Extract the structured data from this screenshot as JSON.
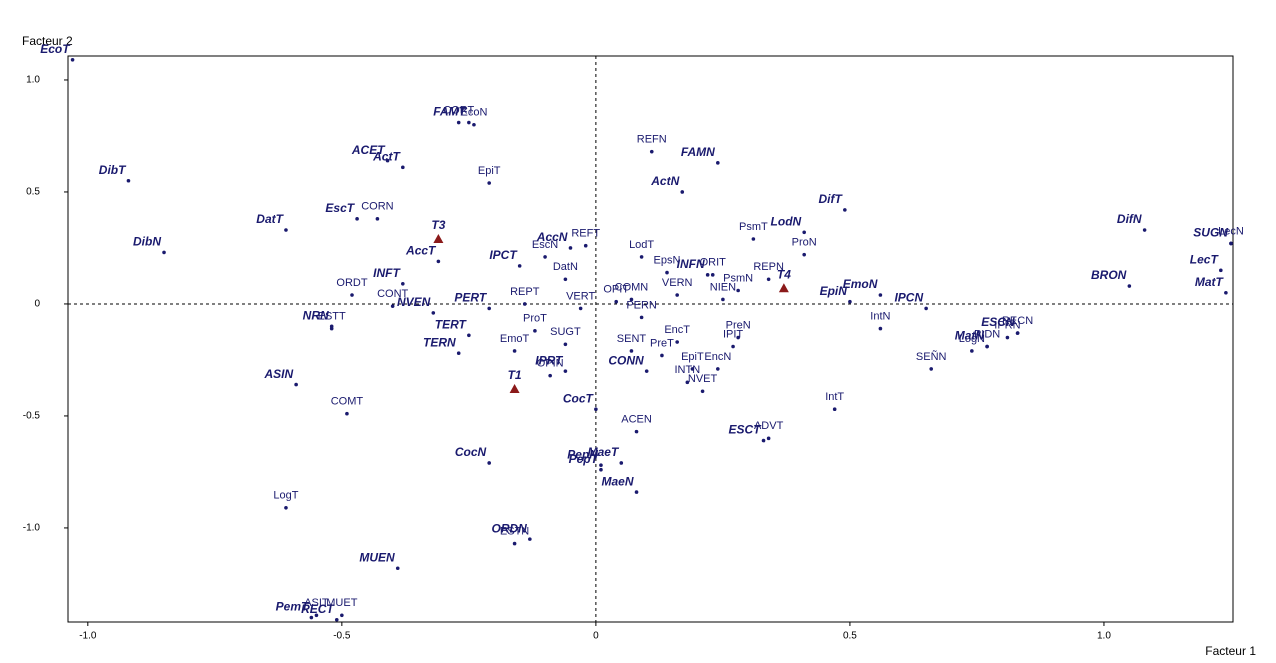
{
  "chart_data": {
    "type": "scatter",
    "xlabel": "Facteur 1",
    "ylabel": "Facteur 2",
    "xlim": [
      -1.039,
      1.254
    ],
    "ylim": [
      -1.42,
      1.107
    ],
    "xticks": [
      {
        "value": -1.0,
        "label": "-1.0"
      },
      -0.5,
      0,
      0.5,
      {
        "value": 1.0,
        "label": "1.0"
      }
    ],
    "yticks": [
      {
        "value": 1.0,
        "label": "1.0"
      },
      0.5,
      0,
      -0.5,
      {
        "value": -1.0,
        "label": "-1.0"
      }
    ],
    "grid": false,
    "zero_lines": true,
    "series": [
      {
        "color": "#1a1a6e",
        "marker": "dot",
        "label_style": "bold-italic",
        "labels": [
          "EcoT",
          "DibT",
          "DibN",
          "DatT",
          "EscT",
          "ACET",
          "ActT",
          "FAMT",
          "AccT",
          "INFT",
          "NRN",
          "NVEN",
          "PERT",
          "TERT",
          "TERN",
          "ASIN",
          "IPCT",
          "AccN",
          "IPRT",
          "CONN",
          "CocT",
          "CocN",
          "PepN",
          "MaeT",
          "PepT",
          "MaeN",
          "ORDN",
          "MUEN",
          "RECT",
          "PemT",
          "FAMN",
          "ActN",
          "DifT",
          "LodN",
          "INFN",
          "EmoN",
          "EpiN",
          "IPCN",
          "ESCN",
          "MatN",
          "ESCT",
          "DifN",
          "SUGN",
          "BRON",
          "LecT",
          "MatT"
        ],
        "x": [
          -1.03,
          -0.92,
          -0.85,
          -0.61,
          -0.47,
          -0.41,
          -0.38,
          -0.25,
          -0.31,
          -0.38,
          -0.52,
          -0.32,
          -0.21,
          -0.25,
          -0.27,
          -0.59,
          -0.15,
          -0.05,
          -0.06,
          0.1,
          0.0,
          -0.21,
          0.01,
          0.05,
          0.01,
          0.08,
          -0.13,
          -0.39,
          -0.51,
          -0.56,
          0.24,
          0.17,
          0.49,
          0.41,
          0.22,
          0.56,
          0.5,
          0.65,
          0.83,
          0.77,
          0.33,
          1.08,
          1.25,
          1.05,
          1.23,
          1.24
        ],
        "values": [
          1.09,
          0.55,
          0.23,
          0.33,
          0.38,
          0.64,
          0.61,
          0.81,
          0.19,
          0.09,
          -0.1,
          -0.04,
          -0.02,
          -0.14,
          -0.22,
          -0.36,
          0.17,
          0.25,
          -0.3,
          -0.3,
          -0.47,
          -0.71,
          -0.72,
          -0.71,
          -0.74,
          -0.84,
          -1.05,
          -1.18,
          -1.41,
          -1.4,
          0.63,
          0.5,
          0.42,
          0.32,
          0.13,
          0.04,
          0.01,
          -0.02,
          -0.13,
          -0.19,
          -0.61,
          0.33,
          0.27,
          0.08,
          0.15,
          0.05
        ]
      },
      {
        "color": "#1a1a6e",
        "marker": "dot",
        "label_style": "plain",
        "labels": [
          "EcoN",
          "CORT",
          "EpiT",
          "CORN",
          "ORDT",
          "CONT",
          "ESTT",
          "REFN",
          "REFT",
          "EscN",
          "DatN",
          "LodT",
          "EpsN",
          "PsmT",
          "PsmN",
          "ProN",
          "REPN",
          "NIEN",
          "ORIT",
          "VERN",
          "COMN",
          "OPIT",
          "VERT",
          "REPT",
          "PERN",
          "ProT",
          "EmoT",
          "SUGT",
          "OPIN",
          "SENT",
          "EncT",
          "PreT",
          "PreN",
          "IPIT",
          "EpiT",
          "EncN",
          "INTN",
          "NVET",
          "IntN",
          "IntT",
          "ADVT",
          "ACEN",
          "LogN",
          "IPRN",
          "RECN",
          "PIDN",
          "SEÑN",
          "LecN",
          "COMT",
          "LogT",
          "ESTN",
          "ASIT",
          "MUET"
        ],
        "x": [
          -0.24,
          -0.27,
          -0.21,
          -0.43,
          -0.48,
          -0.4,
          -0.52,
          0.11,
          -0.02,
          -0.1,
          -0.06,
          0.09,
          0.14,
          0.31,
          0.28,
          0.41,
          0.34,
          0.25,
          0.23,
          0.16,
          0.07,
          0.04,
          -0.03,
          -0.14,
          0.09,
          -0.12,
          -0.16,
          -0.06,
          -0.09,
          0.07,
          0.16,
          0.13,
          0.28,
          0.27,
          0.19,
          0.24,
          0.18,
          0.21,
          0.56,
          0.47,
          0.34,
          0.08,
          0.74,
          0.81,
          0.83,
          0.77,
          0.66,
          1.25,
          -0.49,
          -0.61,
          -0.16,
          -0.55,
          -0.5
        ],
        "values": [
          0.8,
          0.81,
          0.54,
          0.38,
          0.04,
          -0.01,
          -0.11,
          0.68,
          0.26,
          0.21,
          0.11,
          0.21,
          0.14,
          0.29,
          0.06,
          0.22,
          0.11,
          0.02,
          0.13,
          0.04,
          0.02,
          0.01,
          -0.02,
          0.0,
          -0.06,
          -0.12,
          -0.21,
          -0.18,
          -0.32,
          -0.21,
          -0.17,
          -0.23,
          -0.15,
          -0.19,
          -0.29,
          -0.29,
          -0.35,
          -0.39,
          -0.11,
          -0.47,
          -0.6,
          -0.57,
          -0.21,
          -0.15,
          -0.13,
          -0.19,
          -0.29,
          0.27,
          -0.49,
          -0.91,
          -1.07,
          -1.39,
          -1.39
        ]
      },
      {
        "color": "#8b1a1a",
        "marker": "triangle",
        "label_style": "bold-italic",
        "labels": [
          "T3",
          "T1",
          "T4"
        ],
        "x": [
          -0.31,
          -0.16,
          0.37
        ],
        "values": [
          0.29,
          -0.38,
          0.07
        ]
      }
    ]
  }
}
